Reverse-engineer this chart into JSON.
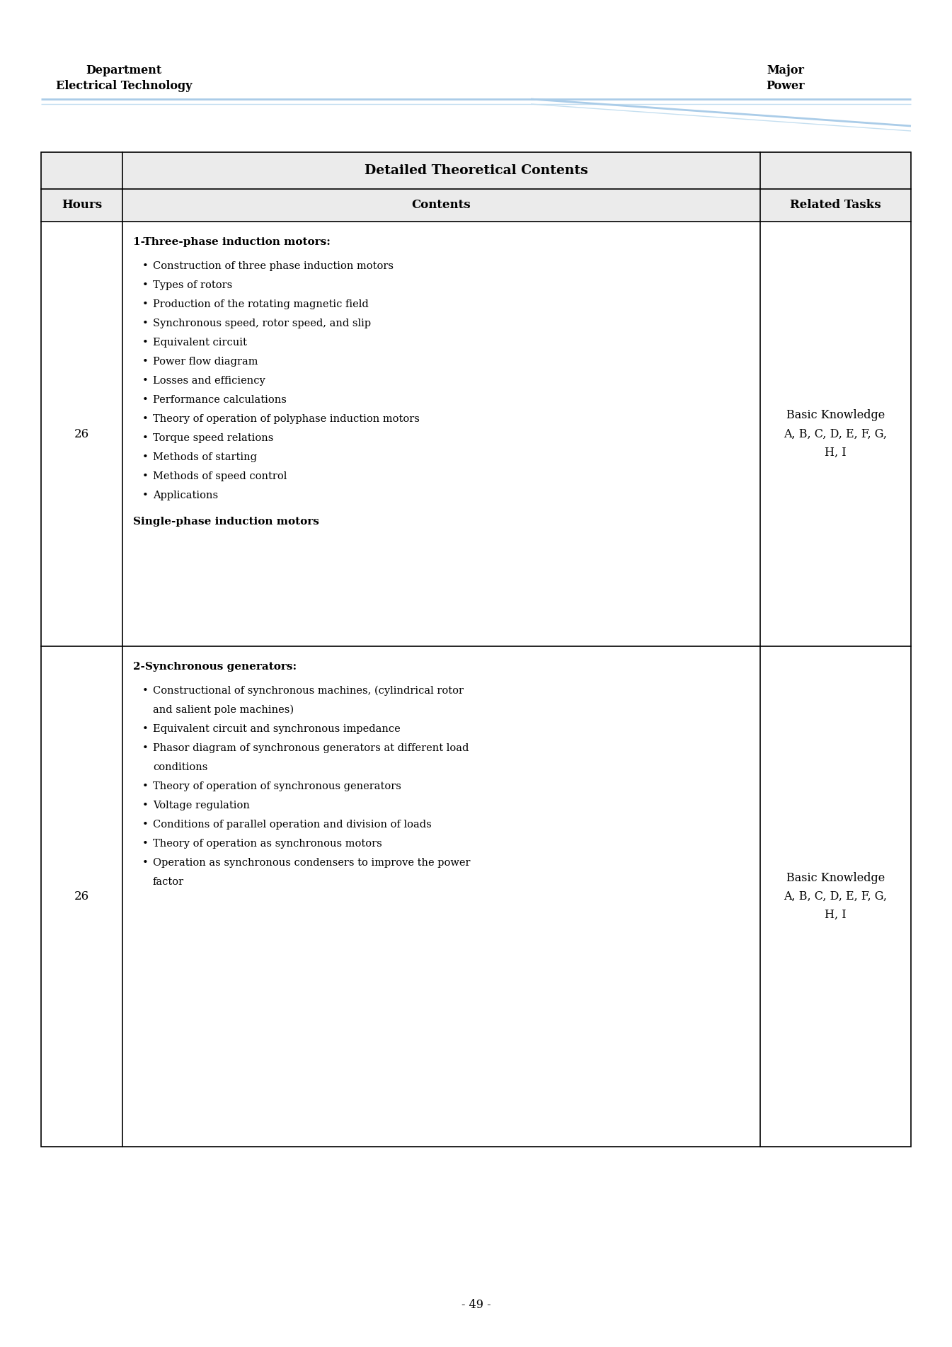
{
  "header_left_line1": "Department",
  "header_left_line2": "Electrical Technology",
  "header_right_line1": "Major",
  "header_right_line2": "Power",
  "table_title": "Detailed Theoretical Contents",
  "col_headers": [
    "Hours",
    "Contents",
    "Related Tasks"
  ],
  "row1_hours": "26",
  "row1_related": "Basic Knowledge\nA, B, C, D, E, F, G,\nH, I",
  "row1_heading": "1-Three-phase induction motors:",
  "row1_bullets": [
    "Construction of three phase induction motors",
    "Types of rotors",
    "Production of the rotating magnetic field",
    "Synchronous speed, rotor speed, and slip",
    "Equivalent circuit",
    "Power flow diagram",
    "Losses and efficiency",
    "Performance calculations",
    "Theory of operation of polyphase induction motors",
    "Torque speed relations",
    "Methods of starting",
    "Methods of speed control",
    "Applications"
  ],
  "row1_footer": "Single-phase induction motors",
  "row2_hours": "26",
  "row2_related": "Basic Knowledge\nA, B, C, D, E, F, G,\nH, I",
  "row2_heading": "2-Synchronous generators:",
  "row2_bullets_line1": [
    "Constructional of synchronous machines, (cylindrical rotor",
    "Equivalent circuit and synchronous impedance",
    "Phasor diagram of synchronous generators at different load",
    "Theory of operation of synchronous generators",
    "Voltage regulation",
    "Conditions of parallel operation and division of loads",
    "Theory of operation as synchronous motors",
    "Operation as synchronous condensers to improve the power"
  ],
  "row2_bullets_line2": [
    "and salient pole machines)",
    "",
    "conditions",
    "",
    "",
    "",
    "",
    "factor"
  ],
  "page_number": "- 49 -",
  "bg_color": "#ffffff",
  "table_header_bg": "#ebebeb",
  "table_border_color": "#000000",
  "header_line_color1": "#aacce8",
  "header_line_color2": "#c5dff0",
  "text_color": "#000000",
  "fig_width": 13.45,
  "fig_height": 19.03,
  "dpi": 100
}
